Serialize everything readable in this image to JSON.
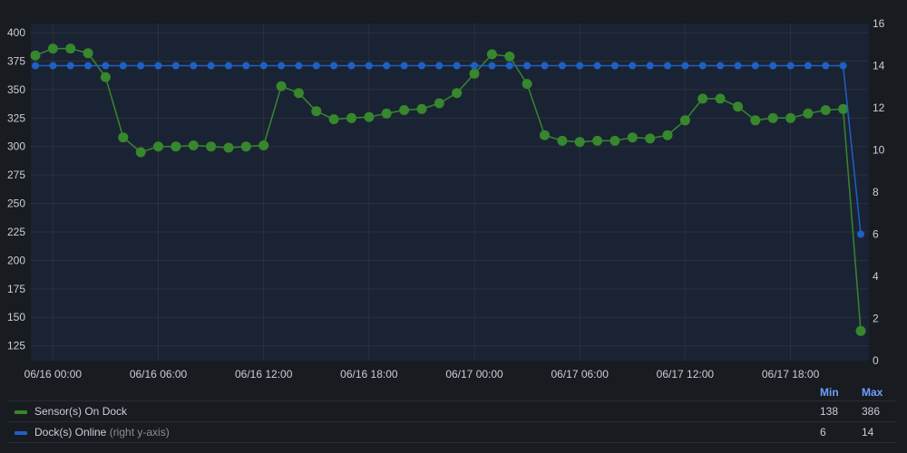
{
  "chart_data": {
    "type": "line",
    "x_ticks": [
      "06/16 00:00",
      "06/16 06:00",
      "06/16 12:00",
      "06/16 18:00",
      "06/17 00:00",
      "06/17 06:00",
      "06/17 12:00",
      "06/17 18:00"
    ],
    "y_left_ticks": [
      125,
      150,
      175,
      200,
      225,
      250,
      275,
      300,
      325,
      350,
      375,
      400
    ],
    "y_left_lim": [
      112,
      408
    ],
    "y_right_ticks": [
      0,
      2,
      4,
      6,
      8,
      10,
      12,
      14,
      16
    ],
    "y_right_lim": [
      0,
      16
    ],
    "grid": true,
    "legend_position": "bottom",
    "series": [
      {
        "name": "Sensor(s) On Dock",
        "axis": "left",
        "color": "#37872d",
        "values": [
          380,
          386,
          386,
          382,
          361,
          308,
          295,
          300,
          300,
          301,
          300,
          299,
          300,
          301,
          353,
          347,
          331,
          324,
          325,
          326,
          329,
          332,
          333,
          338,
          347,
          364,
          381,
          379,
          355,
          310,
          305,
          304,
          305,
          305,
          308,
          307,
          310,
          323,
          342,
          342,
          335,
          323,
          325,
          325,
          329,
          332,
          333,
          138
        ]
      },
      {
        "name": "Dock(s) Online",
        "axis": "right",
        "color": "#1f60c4",
        "values": [
          14,
          14,
          14,
          14,
          14,
          14,
          14,
          14,
          14,
          14,
          14,
          14,
          14,
          14,
          14,
          14,
          14,
          14,
          14,
          14,
          14,
          14,
          14,
          14,
          14,
          14,
          14,
          14,
          14,
          14,
          14,
          14,
          14,
          14,
          14,
          14,
          14,
          14,
          14,
          14,
          14,
          14,
          14,
          14,
          14,
          14,
          14,
          6
        ]
      }
    ]
  },
  "legend": {
    "min_header": "Min",
    "max_header": "Max",
    "rows": [
      {
        "name": "Sensor(s) On Dock",
        "suffix": "",
        "min": "138",
        "max": "386",
        "color": "#37872d"
      },
      {
        "name": "Dock(s) Online",
        "suffix": " (right y-axis)",
        "min": "6",
        "max": "14",
        "color": "#1f60c4"
      }
    ]
  }
}
